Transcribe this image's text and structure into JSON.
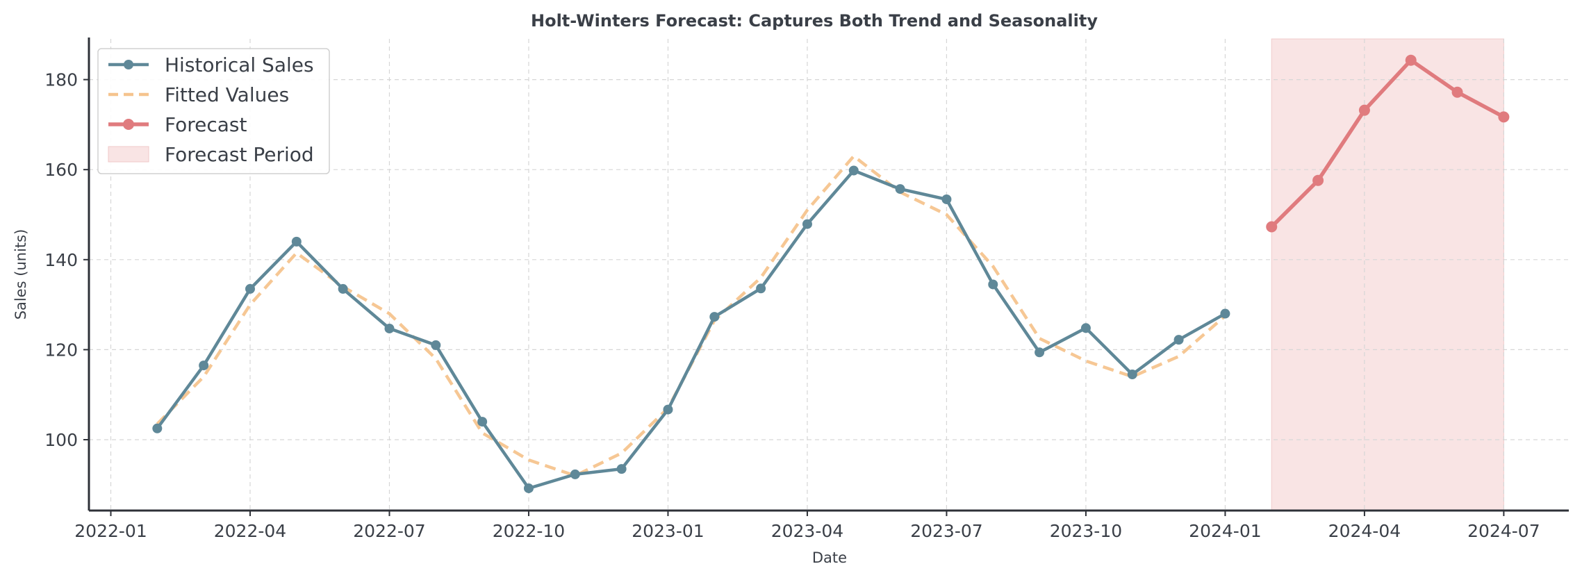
{
  "chart_data": {
    "type": "line",
    "title": "Holt-Winters Forecast: Captures Both Trend and Seasonality",
    "xlabel": "Date",
    "ylabel": "Sales (units)",
    "xlim": [
      0,
      32
    ],
    "ylim": [
      84,
      189
    ],
    "grid": true,
    "legend_position": "top-left",
    "x_ticks": [
      {
        "index": 0,
        "label": "2022-01"
      },
      {
        "index": 3,
        "label": "2022-04"
      },
      {
        "index": 6,
        "label": "2022-07"
      },
      {
        "index": 9,
        "label": "2022-10"
      },
      {
        "index": 12,
        "label": "2023-01"
      },
      {
        "index": 15,
        "label": "2023-04"
      },
      {
        "index": 18,
        "label": "2023-07"
      },
      {
        "index": 21,
        "label": "2023-10"
      },
      {
        "index": 24,
        "label": "2024-01"
      },
      {
        "index": 27,
        "label": "2024-04"
      },
      {
        "index": 30,
        "label": "2024-07"
      }
    ],
    "y_ticks": [
      100,
      120,
      140,
      160,
      180
    ],
    "x_unit_note": "x values are month indices where 0 = 2022-01",
    "series": [
      {
        "name": "Historical Sales",
        "style": "line-marker",
        "color": "#5f8898",
        "x": [
          1,
          2,
          3,
          4,
          5,
          6,
          7,
          8,
          9,
          10,
          11,
          12,
          13,
          14,
          15,
          16,
          17,
          18,
          19,
          20,
          21,
          22,
          23,
          24
        ],
        "values": [
          102.5,
          116.5,
          133.5,
          144,
          133.5,
          124.7,
          121,
          104,
          89.2,
          92.3,
          93.5,
          106.7,
          127.3,
          133.6,
          147.9,
          159.8,
          155.7,
          153.4,
          134.5,
          119.4,
          124.8,
          114.5,
          122.2,
          128
        ]
      },
      {
        "name": "Fitted Values",
        "style": "dashed",
        "color": "#f5c48e",
        "x": [
          1,
          2,
          3,
          4,
          5,
          6,
          7,
          8,
          9,
          10,
          11,
          12,
          13,
          14,
          15,
          16,
          17,
          18,
          19,
          20,
          21,
          22,
          23,
          24
        ],
        "values": [
          103.5,
          114,
          130,
          141.5,
          134,
          128,
          118,
          101.5,
          95.5,
          92,
          97,
          107,
          126.5,
          136,
          151,
          163,
          155,
          150,
          138.5,
          122.5,
          117.5,
          114,
          118.5,
          127.5
        ]
      },
      {
        "name": "Forecast",
        "style": "line-marker",
        "color": "#e07b7e",
        "x": [
          25,
          26,
          27,
          28,
          29,
          30
        ],
        "values": [
          147.3,
          157.6,
          173.2,
          184.3,
          177.2,
          171.7
        ]
      }
    ],
    "shaded_regions": [
      {
        "name": "Forecast Period",
        "x_start": 25,
        "x_end": 30,
        "color": "#f9e4e4"
      }
    ]
  },
  "legend": {
    "items": [
      {
        "label": "Historical Sales"
      },
      {
        "label": "Fitted Values"
      },
      {
        "label": "Forecast"
      },
      {
        "label": "Forecast Period"
      }
    ]
  }
}
